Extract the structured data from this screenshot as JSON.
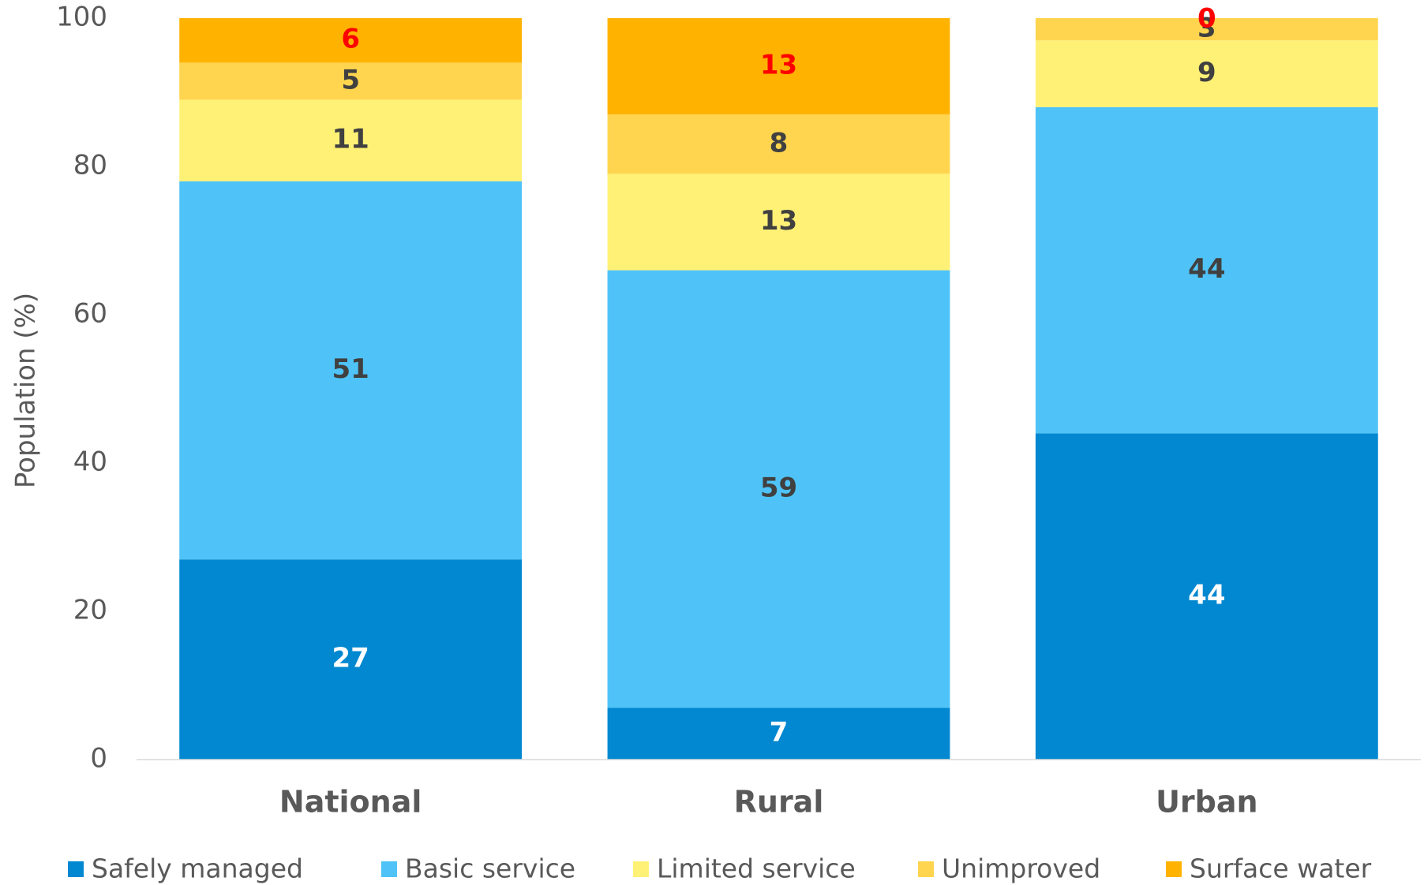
{
  "chart_data": {
    "type": "stacked_bar",
    "categories": [
      "National",
      "Rural",
      "Urban"
    ],
    "series": [
      {
        "name": "Safely managed",
        "color": "#0288d1",
        "label_color": "#ffffff",
        "values": [
          27,
          7,
          44
        ]
      },
      {
        "name": "Basic service",
        "color": "#4fc3f7",
        "label_color": "#404040",
        "values": [
          51,
          59,
          44
        ]
      },
      {
        "name": "Limited service",
        "color": "#fff176",
        "label_color": "#404040",
        "values": [
          11,
          13,
          9
        ]
      },
      {
        "name": "Unimproved",
        "color": "#ffd54f",
        "label_color": "#404040",
        "values": [
          5,
          8,
          3
        ]
      },
      {
        "name": "Surface water",
        "color": "#ffb300",
        "label_color": "#ff0000",
        "values": [
          6,
          13,
          0
        ]
      }
    ],
    "ylabel": "Population (%)",
    "ylim": [
      0,
      100
    ],
    "yticks": [
      0,
      20,
      40,
      60,
      80,
      100
    ],
    "grid": false
  }
}
